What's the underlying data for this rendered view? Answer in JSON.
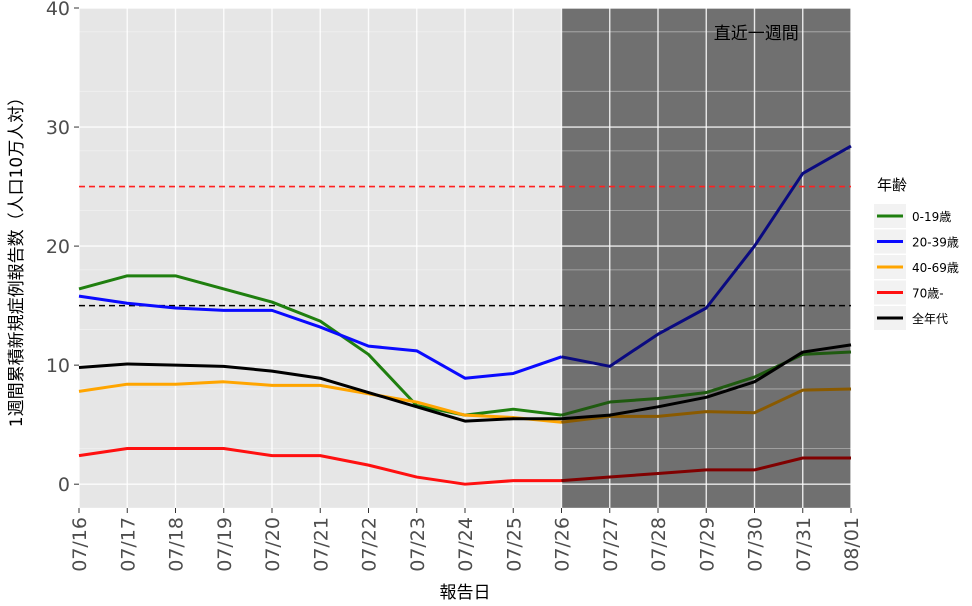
{
  "chart_data": {
    "type": "line",
    "xlabel": "報告日",
    "ylabel": "1週間累積新規症例報告数（人口10万人対）",
    "x": [
      "07/16",
      "07/17",
      "07/18",
      "07/19",
      "07/20",
      "07/21",
      "07/22",
      "07/23",
      "07/24",
      "07/25",
      "07/26",
      "07/27",
      "07/28",
      "07/29",
      "07/30",
      "07/31",
      "08/01"
    ],
    "ylim": [
      -2,
      40
    ],
    "yticks": [
      0,
      10,
      20,
      30,
      40
    ],
    "grid": true,
    "legend_title": "年齢",
    "legend_position": "right",
    "shaded_region": {
      "label": "直近一週間",
      "start": "07/26",
      "end": "08/01",
      "color": "#707070"
    },
    "reference_lines": [
      {
        "y": 25,
        "color": "#ff2020",
        "style": "dashed"
      },
      {
        "y": 15,
        "color": "#000000",
        "style": "dashed"
      }
    ],
    "series": [
      {
        "name": "0-19歳",
        "color": "#1f7f0f",
        "shaded_color": "#1f5a10",
        "values": [
          16.4,
          17.5,
          17.5,
          16.4,
          15.3,
          13.7,
          10.9,
          6.6,
          5.8,
          6.3,
          5.8,
          6.9,
          7.2,
          7.7,
          9.0,
          10.9,
          11.1
        ]
      },
      {
        "name": "20-39歳",
        "color": "#0a0aff",
        "shaded_color": "#0a0a80",
        "values": [
          15.8,
          15.2,
          14.8,
          14.6,
          14.6,
          13.2,
          11.6,
          11.2,
          8.9,
          9.3,
          10.7,
          9.9,
          12.6,
          14.8,
          20.0,
          26.1,
          28.4
        ]
      },
      {
        "name": "40-69歳",
        "color": "#ffa500",
        "shaded_color": "#8a5a00",
        "values": [
          7.8,
          8.4,
          8.4,
          8.6,
          8.3,
          8.3,
          7.6,
          6.9,
          5.8,
          5.6,
          5.2,
          5.7,
          5.7,
          6.1,
          6.0,
          7.9,
          8.0
        ]
      },
      {
        "name": "70歳-",
        "color": "#ff1010",
        "shaded_color": "#800000",
        "values": [
          2.4,
          3.0,
          3.0,
          3.0,
          2.4,
          2.4,
          1.6,
          0.6,
          0.0,
          0.3,
          0.3,
          0.6,
          0.9,
          1.2,
          1.2,
          2.2,
          2.2
        ]
      },
      {
        "name": "全年代",
        "color": "#000000",
        "shaded_color": "#000000",
        "values": [
          9.8,
          10.1,
          10.0,
          9.9,
          9.5,
          8.9,
          7.7,
          6.5,
          5.3,
          5.5,
          5.5,
          5.8,
          6.5,
          7.3,
          8.6,
          11.1,
          11.7
        ]
      }
    ]
  }
}
